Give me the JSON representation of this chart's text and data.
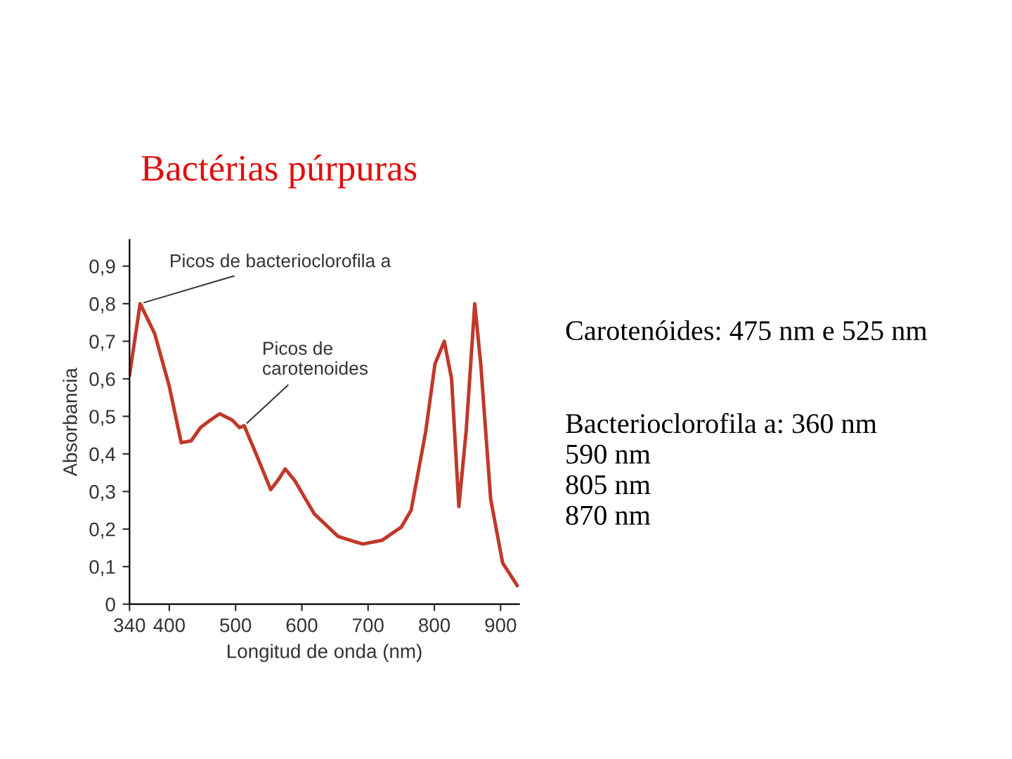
{
  "chart_data": {
    "type": "line",
    "title": "Bactérias púrpuras",
    "xlabel": "Longitud de onda (nm)",
    "ylabel": "Absorbancia",
    "x": [
      340,
      356,
      378,
      400,
      418,
      433,
      447,
      462,
      476,
      495,
      506,
      513,
      531,
      553,
      564,
      575,
      589,
      619,
      655,
      692,
      721,
      750,
      765,
      787,
      801,
      815,
      826,
      837,
      848,
      861,
      870,
      885,
      903,
      925
    ],
    "series": [
      {
        "color": "#c0392b",
        "values": [
          0.61,
          0.8,
          0.72,
          0.58,
          0.43,
          0.435,
          0.47,
          0.49,
          0.507,
          0.49,
          0.47,
          0.475,
          0.4,
          0.305,
          0.33,
          0.36,
          0.33,
          0.24,
          0.18,
          0.16,
          0.17,
          0.205,
          0.25,
          0.46,
          0.64,
          0.7,
          0.6,
          0.26,
          0.46,
          0.8,
          0.64,
          0.28,
          0.11,
          0.05
        ]
      }
    ],
    "xlim": [
      340,
      928
    ],
    "xticks": [
      340,
      400,
      500,
      600,
      700,
      800,
      900
    ],
    "ylim": [
      0,
      0.97
    ],
    "yticks": [
      {
        "value": 0,
        "label": "0"
      },
      {
        "value": 0.1,
        "label": "0,1"
      },
      {
        "value": 0.2,
        "label": "0,2"
      },
      {
        "value": 0.3,
        "label": "0,3"
      },
      {
        "value": 0.4,
        "label": "0,4"
      },
      {
        "value": 0.5,
        "label": "0,5"
      },
      {
        "value": 0.6,
        "label": "0,6"
      },
      {
        "value": 0.7,
        "label": "0,7"
      },
      {
        "value": 0.8,
        "label": "0,8"
      },
      {
        "value": 0.9,
        "label": "0,9"
      }
    ],
    "grid": false,
    "legend": false,
    "marker": "none",
    "line_style": "solid",
    "annotations": [
      {
        "text": "Picos de bacterioclorofila a",
        "x": 356,
        "y": 0.8
      },
      {
        "text": "Picos de\ncarotenoides",
        "x": 513,
        "y": 0.475
      },
      "Carotenóides: 475 nm e 525 nm",
      "Bacterioclorofila a: 360 nm\n590 nm\n805 nm\n870 nm"
    ]
  }
}
